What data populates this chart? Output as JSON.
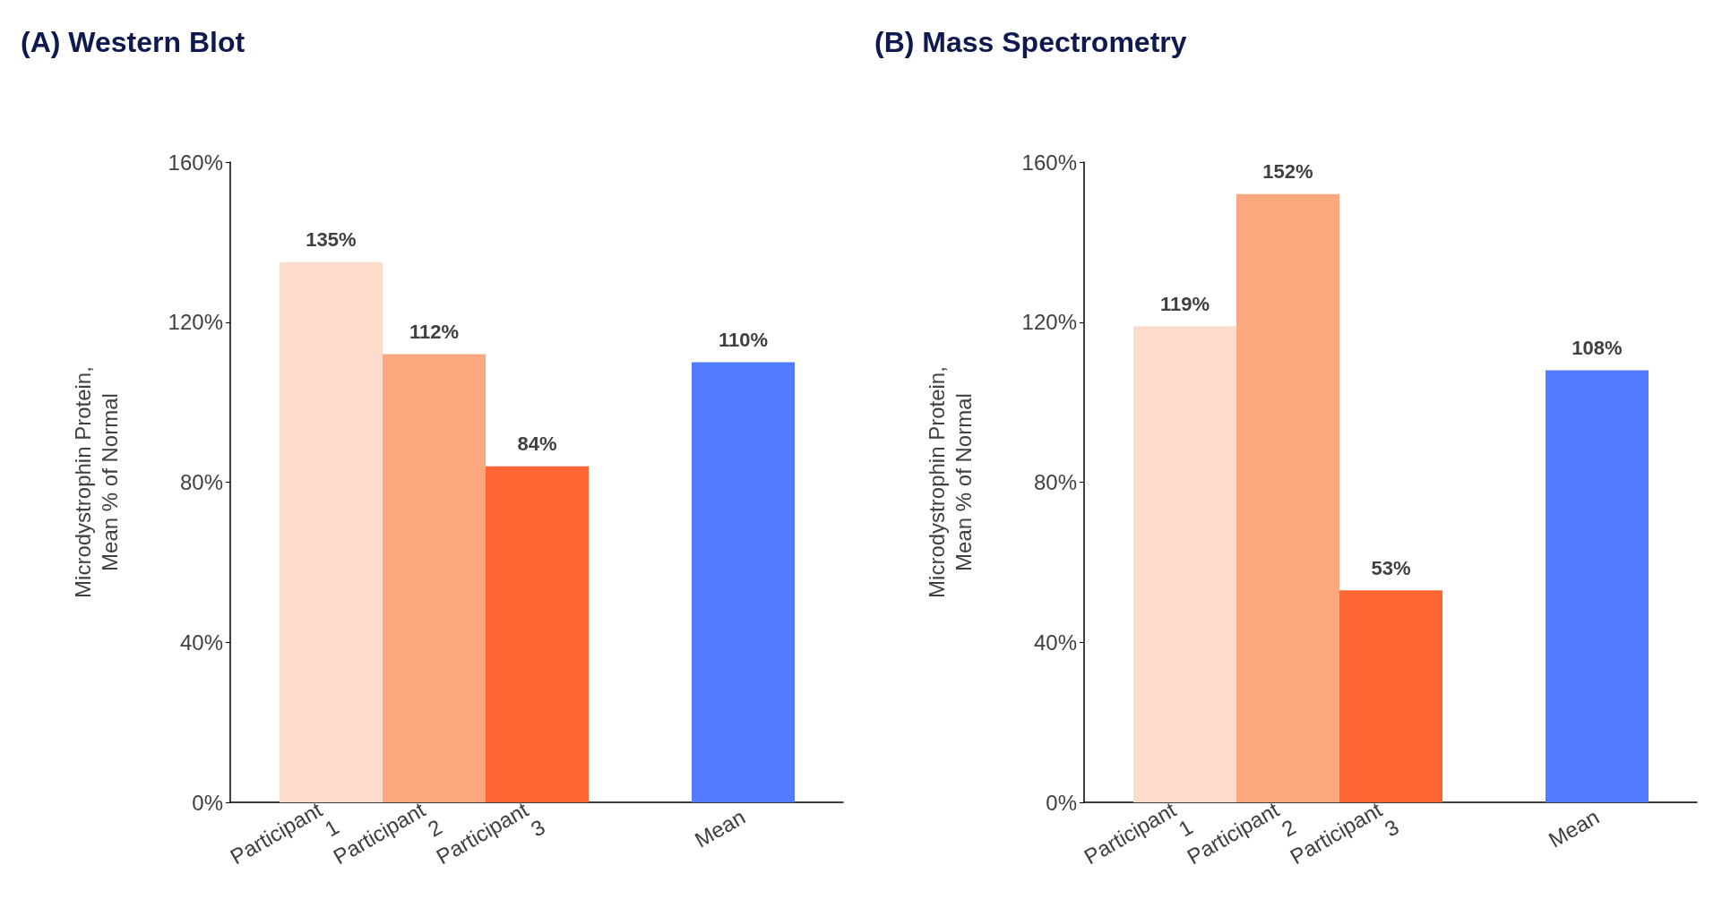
{
  "chart_data": [
    {
      "type": "bar",
      "title": "(A) Western Blot",
      "ylabel": "Microdystrophin Protein,\nMean % of Normal",
      "categories": [
        "Participant 1",
        "Participant 2",
        "Participant 3",
        null,
        "Mean"
      ],
      "values": [
        135,
        112,
        84,
        null,
        110
      ],
      "colors": [
        "#fddccc",
        "#fca87e",
        "#ff6633",
        null,
        "#537bff"
      ],
      "value_labels": [
        "135%",
        "112%",
        "84%",
        null,
        "110%"
      ],
      "ylim": [
        0,
        160
      ],
      "yticks": [
        {
          "value": 0,
          "label": "0%"
        },
        {
          "value": 40,
          "label": "40%"
        },
        {
          "value": 80,
          "label": "80%"
        },
        {
          "value": 120,
          "label": "120%"
        },
        {
          "value": 160,
          "label": "160%"
        }
      ],
      "grid": false
    },
    {
      "type": "bar",
      "title": "(B) Mass Spectrometry",
      "ylabel": "Microdystrophin Protein,\nMean % of Normal",
      "categories": [
        "Participant 1",
        "Participant 2",
        "Participant 3",
        null,
        "Mean"
      ],
      "values": [
        119,
        152,
        53,
        null,
        108
      ],
      "colors": [
        "#fddccc",
        "#fca87e",
        "#ff6633",
        null,
        "#537bff"
      ],
      "value_labels": [
        "119%",
        "152%",
        "53%",
        null,
        "108%"
      ],
      "ylim": [
        0,
        160
      ],
      "yticks": [
        {
          "value": 0,
          "label": "0%"
        },
        {
          "value": 40,
          "label": "40%"
        },
        {
          "value": 80,
          "label": "80%"
        },
        {
          "value": 120,
          "label": "120%"
        },
        {
          "value": 160,
          "label": "160%"
        }
      ],
      "grid": false
    }
  ]
}
